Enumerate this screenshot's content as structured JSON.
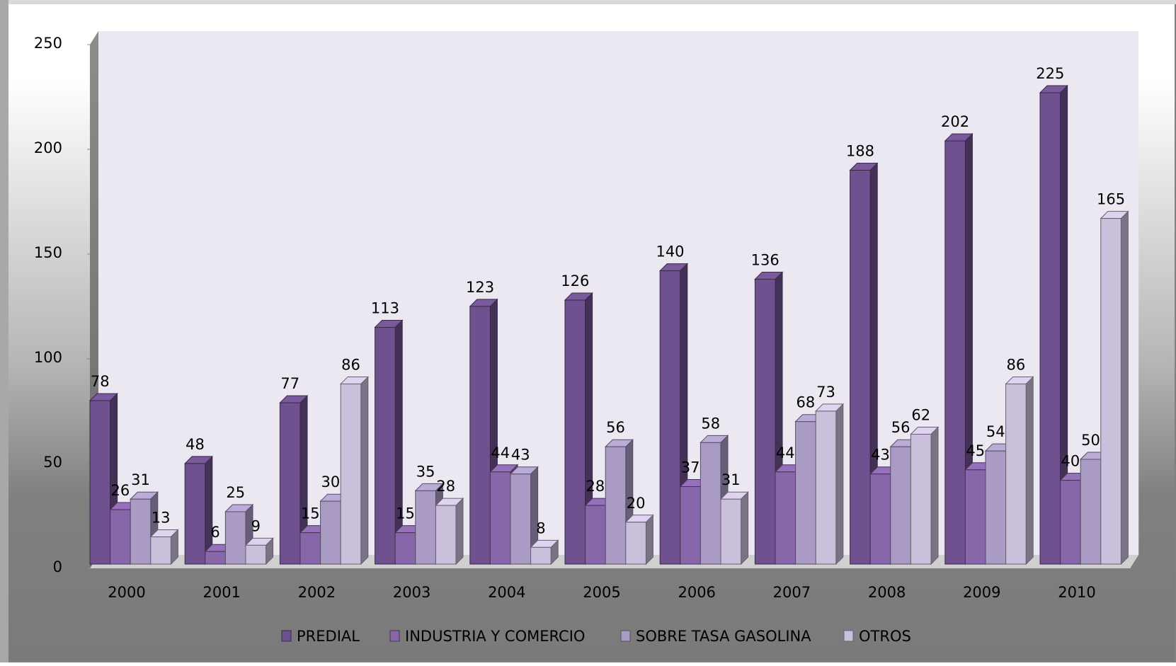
{
  "chart_data": {
    "type": "bar3d",
    "categories": [
      "2000",
      "2001",
      "2002",
      "2003",
      "2004",
      "2005",
      "2006",
      "2007",
      "2008",
      "2009",
      "2010"
    ],
    "series": [
      {
        "name": "PREDIAL",
        "color": "#70518f",
        "values": [
          78,
          48,
          77,
          113,
          123,
          126,
          140,
          136,
          188,
          202,
          225
        ]
      },
      {
        "name": "INDUSTRIA Y COMERCIO",
        "color": "#8866aa",
        "values": [
          26,
          6,
          15,
          15,
          44,
          28,
          37,
          44,
          43,
          45,
          40
        ]
      },
      {
        "name": "SOBRE TASA GASOLINA",
        "color": "#aa9bc4",
        "values": [
          31,
          25,
          30,
          35,
          43,
          56,
          58,
          68,
          56,
          54,
          50
        ]
      },
      {
        "name": "OTROS",
        "color": "#cbc0db",
        "values": [
          13,
          9,
          86,
          28,
          8,
          20,
          31,
          73,
          62,
          86,
          165
        ]
      }
    ],
    "ylim": [
      0,
      250
    ],
    "yticks": [
      0,
      50,
      100,
      150,
      200,
      250
    ],
    "legend": "bottom"
  }
}
